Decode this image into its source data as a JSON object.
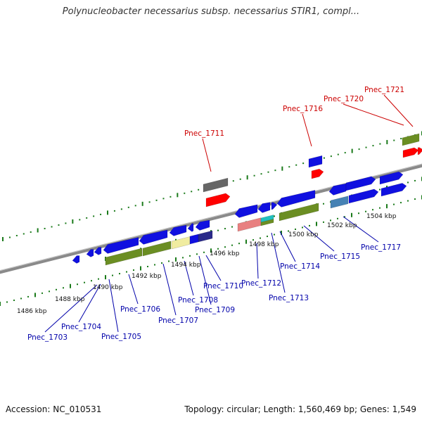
{
  "title": "Polynucleobacter necessarius subsp. necessarius STIR1, compl...",
  "footer": {
    "accession": "Accession: NC_010531",
    "summary": "Topology: circular; Length: 1,560,469 bp; Genes: 1,549"
  },
  "colors": {
    "backbone": "#8a8a8a",
    "ticks": "#1a7a1a",
    "blue_gene": "#1010e0",
    "red_gene": "#ff0000",
    "red_label": "#cc0000",
    "blue_label": "#0000aa",
    "olive": "#6b8e23",
    "gray_gene": "#666666",
    "pink": "#e88080",
    "cyan": "#20c0c0",
    "yellow": "#f0eca0",
    "steel": "#4682b4"
  },
  "kbp_labels": [
    "1486 kbp",
    "1488 kbp",
    "1490 kbp",
    "1492 kbp",
    "1494 kbp",
    "1496 kbp",
    "1498 kbp",
    "1500 kbp",
    "1502 kbp",
    "1504 kbp"
  ],
  "red_labels": [
    "Pnec_1711",
    "Pnec_1716",
    "Pnec_1720",
    "Pnec_1721"
  ],
  "blue_labels": [
    "Pnec_1703",
    "Pnec_1704",
    "Pnec_1705",
    "Pnec_1706",
    "Pnec_1707",
    "Pnec_1708",
    "Pnec_1709",
    "Pnec_1710",
    "Pnec_1712",
    "Pnec_1713",
    "Pnec_1714",
    "Pnec_1715",
    "Pnec_1717"
  ]
}
